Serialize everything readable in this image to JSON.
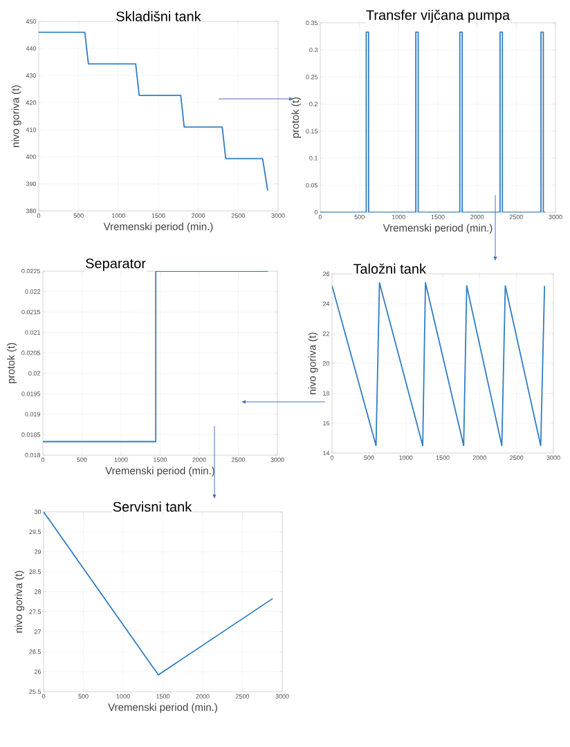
{
  "chart_data": [
    {
      "type": "line",
      "title": "Skladišni tank",
      "xlabel": "Vremenski period (min.)",
      "ylabel": "nivo goriva (t)",
      "grid": true,
      "xlim": [
        0,
        3000
      ],
      "ylim": [
        380,
        450
      ],
      "xticks": [
        0,
        500,
        1000,
        1500,
        2000,
        2500,
        3000
      ],
      "yticks": [
        380,
        390,
        400,
        410,
        420,
        430,
        440,
        450
      ],
      "x": [
        0,
        578,
        622,
        1215,
        1259,
        1780,
        1823,
        2300,
        2344,
        2806,
        2870
      ],
      "series": [
        {
          "color": "#2f7dc4",
          "values": [
            446,
            446,
            434.3,
            434.3,
            422.7,
            422.7,
            411,
            411,
            399.3,
            399.3,
            387.5
          ]
        }
      ]
    },
    {
      "type": "line",
      "title": "Transfer vijčana pumpa",
      "xlabel": "Vremenski period (min.)",
      "ylabel": "protok (t)",
      "grid": true,
      "xlim": [
        0,
        3000
      ],
      "ylim": [
        0,
        0.35
      ],
      "xticks": [
        0,
        500,
        1000,
        1500,
        2000,
        2500,
        3000
      ],
      "yticks": [
        0,
        0.05,
        0.1,
        0.15,
        0.2,
        0.25,
        0.3,
        0.35
      ],
      "x": [
        0,
        586,
        586,
        616,
        616,
        1219,
        1219,
        1249,
        1249,
        1780,
        1780,
        1810,
        1810,
        2293,
        2293,
        2323,
        2323,
        2815,
        2815,
        2845,
        2845,
        2870
      ],
      "series": [
        {
          "color": "#2f7dc4",
          "values": [
            0,
            0,
            0.333,
            0.333,
            0,
            0,
            0.333,
            0.333,
            0,
            0,
            0.333,
            0.333,
            0,
            0,
            0.333,
            0.333,
            0,
            0,
            0.333,
            0.333,
            0,
            0
          ]
        }
      ]
    },
    {
      "type": "line",
      "title": "Separator",
      "xlabel": "Vremenski period (min.)",
      "ylabel": "protok (t)",
      "grid": true,
      "xlim": [
        0,
        3000
      ],
      "ylim": [
        0.018,
        0.0225
      ],
      "xticks": [
        0,
        500,
        1000,
        1500,
        2000,
        2500,
        3000
      ],
      "yticks": [
        0.018,
        0.0185,
        0.019,
        0.0195,
        0.02,
        0.0205,
        0.021,
        0.0215,
        0.022,
        0.0225
      ],
      "x": [
        0,
        1444,
        1444,
        2880
      ],
      "series": [
        {
          "color": "#2f7dc4",
          "values": [
            0.01833,
            0.01833,
            0.0225,
            0.0225
          ]
        }
      ]
    },
    {
      "type": "line",
      "title": "Taložni tank",
      "ylabel": "nivo goriva (t)",
      "grid": true,
      "xlim": [
        0,
        3000
      ],
      "ylim": [
        14,
        26
      ],
      "xticks": [
        0,
        500,
        1000,
        1500,
        2000,
        2500,
        3000
      ],
      "yticks": [
        14,
        16,
        18,
        20,
        22,
        24,
        26
      ],
      "x": [
        0,
        596,
        643,
        1229,
        1266,
        1784,
        1825,
        2301,
        2348,
        2828,
        2880
      ],
      "series": [
        {
          "color": "#2f7dc4",
          "values": [
            25.2,
            14.5,
            25.4,
            14.5,
            25.4,
            14.5,
            25.2,
            14.5,
            25.2,
            14.5,
            25.2
          ]
        }
      ]
    },
    {
      "type": "line",
      "title": "Servisni tank",
      "xlabel": "Vremenski period (min.)",
      "ylabel": "nivo goriva (t)",
      "grid": true,
      "xlim": [
        0,
        3000
      ],
      "ylim": [
        25.5,
        30
      ],
      "xticks": [
        0,
        500,
        1000,
        1500,
        2000,
        2500,
        3000
      ],
      "yticks": [
        25.5,
        26,
        26.5,
        27,
        27.5,
        28,
        28.5,
        29,
        29.5,
        30
      ],
      "x": [
        0,
        1443,
        2880
      ],
      "series": [
        {
          "color": "#2f7dc4",
          "values": [
            30,
            25.92,
            27.83
          ]
        }
      ]
    }
  ]
}
